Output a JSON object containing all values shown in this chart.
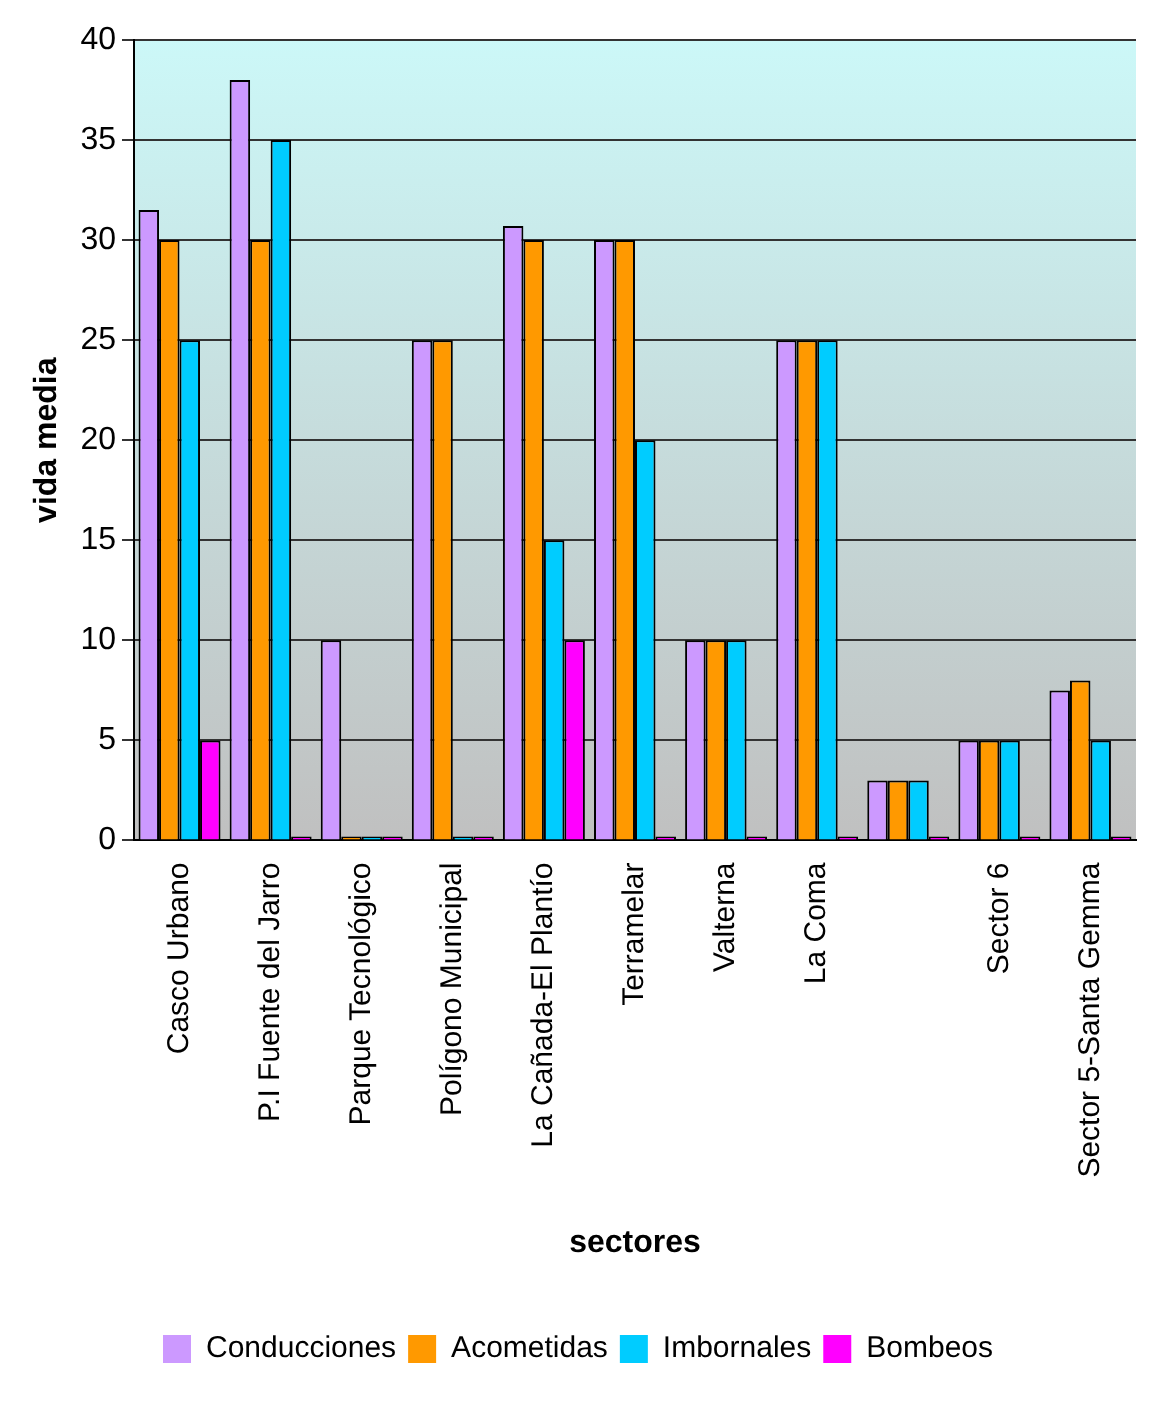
{
  "chart_data": {
    "type": "bar",
    "xlabel": "sectores",
    "ylabel": "vida media",
    "categories": [
      "Casco Urbano",
      "P.I Fuente del Jarro",
      "Parque Tecnológico",
      "Polígono Municipal",
      "La Cañada-El Plantío",
      "Terramelar",
      "Valterna",
      "La Coma",
      null,
      "Sector 6",
      "Sector 5-Santa Gemma"
    ],
    "series": [
      {
        "name": "Conducciones",
        "color": "#cc99ff",
        "values": [
          31.5,
          38,
          10,
          25,
          30.7,
          30,
          10,
          25,
          3,
          5,
          7.5
        ]
      },
      {
        "name": "Acometidas",
        "color": "#ff9900",
        "values": [
          30,
          30,
          0,
          25,
          30,
          30,
          10,
          25,
          3,
          5,
          8
        ]
      },
      {
        "name": "Imbornales",
        "color": "#00ccff",
        "values": [
          25,
          35,
          0,
          0,
          15,
          20,
          10,
          25,
          3,
          5,
          5
        ]
      },
      {
        "name": "Bombeos",
        "color": "#ff00ff",
        "values": [
          5,
          0,
          0,
          0,
          10,
          0,
          0,
          0,
          0,
          0,
          0
        ]
      }
    ],
    "ylim": [
      0,
      40
    ],
    "yticks": [
      0,
      5,
      10,
      15,
      20,
      25,
      30,
      35,
      40
    ],
    "grid": "y",
    "legend": "bottom"
  }
}
